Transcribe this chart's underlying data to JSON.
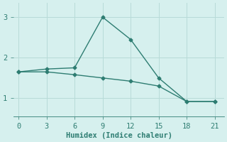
{
  "line1_x": [
    0,
    3,
    6,
    9,
    12,
    15,
    18,
    21
  ],
  "line1_y": [
    1.65,
    1.72,
    1.75,
    3.0,
    2.45,
    1.5,
    0.92,
    0.92
  ],
  "line2_x": [
    0,
    3,
    6,
    9,
    12,
    15,
    18,
    21
  ],
  "line2_y": [
    1.65,
    1.65,
    1.58,
    1.5,
    1.42,
    1.3,
    0.92,
    0.92
  ],
  "line_color": "#2e7d72",
  "bg_color": "#d6f0ee",
  "grid_color": "#b8dbd8",
  "xlabel": "Humidex (Indice chaleur)",
  "xlim": [
    -0.5,
    22.0
  ],
  "ylim": [
    0.55,
    3.35
  ],
  "xticks": [
    0,
    3,
    6,
    9,
    12,
    15,
    18,
    21
  ],
  "yticks": [
    1,
    2,
    3
  ],
  "marker": "D",
  "marker_size": 2.5,
  "line_width": 1.0,
  "tick_fontsize": 7.5,
  "label_fontsize": 7.5
}
